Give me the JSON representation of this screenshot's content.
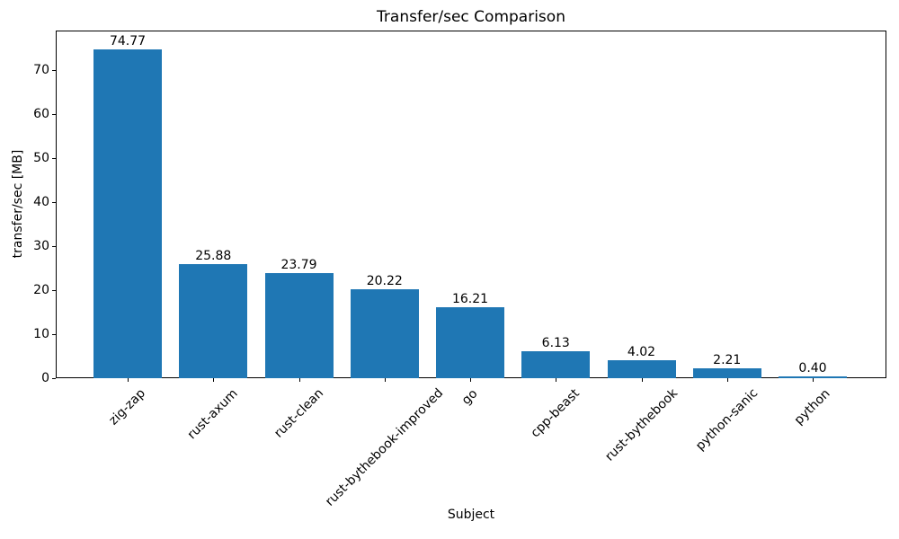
{
  "chart_data": {
    "type": "bar",
    "title": "Transfer/sec Comparison",
    "xlabel": "Subject",
    "ylabel": "transfer/sec [MB]",
    "categories": [
      "zig-zap",
      "rust-axum",
      "rust-clean",
      "rust-bythebook-improved",
      "go",
      "cpp-beast",
      "rust-bythebook",
      "python-sanic",
      "python"
    ],
    "values": [
      74.77,
      25.88,
      23.79,
      20.22,
      16.21,
      6.13,
      4.02,
      2.21,
      0.4
    ],
    "value_labels": [
      "74.77",
      "25.88",
      "23.79",
      "20.22",
      "16.21",
      "6.13",
      "4.02",
      "2.21",
      "0.40"
    ],
    "yticks": [
      0,
      10,
      20,
      30,
      40,
      50,
      60,
      70
    ],
    "ylim": [
      0,
      79
    ],
    "grid": false,
    "legend": "none",
    "xtick_rotation_deg": 45,
    "bar_color": "#1f77b4",
    "text_color": "#000000",
    "background": "#ffffff"
  }
}
